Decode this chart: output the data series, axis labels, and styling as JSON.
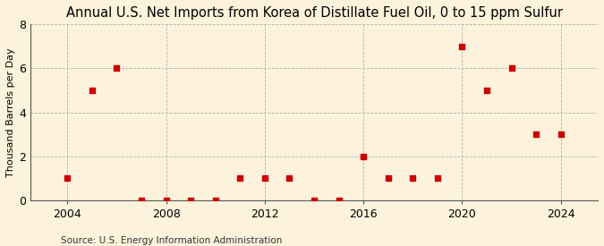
{
  "title": "Annual U.S. Net Imports from Korea of Distillate Fuel Oil, 0 to 15 ppm Sulfur",
  "ylabel": "Thousand Barrels per Day",
  "source": "Source: U.S. Energy Information Administration",
  "background_color": "#fdf3dc",
  "marker_color": "#cc0000",
  "years": [
    2004,
    2005,
    2006,
    2007,
    2008,
    2009,
    2010,
    2011,
    2012,
    2013,
    2014,
    2015,
    2016,
    2017,
    2018,
    2019,
    2020,
    2021,
    2022,
    2023,
    2024
  ],
  "values": [
    1,
    5,
    6,
    0,
    0,
    0,
    0,
    1,
    1,
    1,
    0,
    0,
    2,
    1,
    1,
    1,
    7,
    5,
    6,
    3,
    3
  ],
  "ylim": [
    0,
    8
  ],
  "yticks": [
    0,
    2,
    4,
    6,
    8
  ],
  "xlim": [
    2002.5,
    2025.5
  ],
  "xticks": [
    2004,
    2008,
    2012,
    2016,
    2020,
    2024
  ],
  "grid_color": "#b0b0b0",
  "vline_color": "#b0b0b0",
  "title_fontsize": 10.5,
  "ylabel_fontsize": 8,
  "tick_fontsize": 9,
  "source_fontsize": 7.5
}
